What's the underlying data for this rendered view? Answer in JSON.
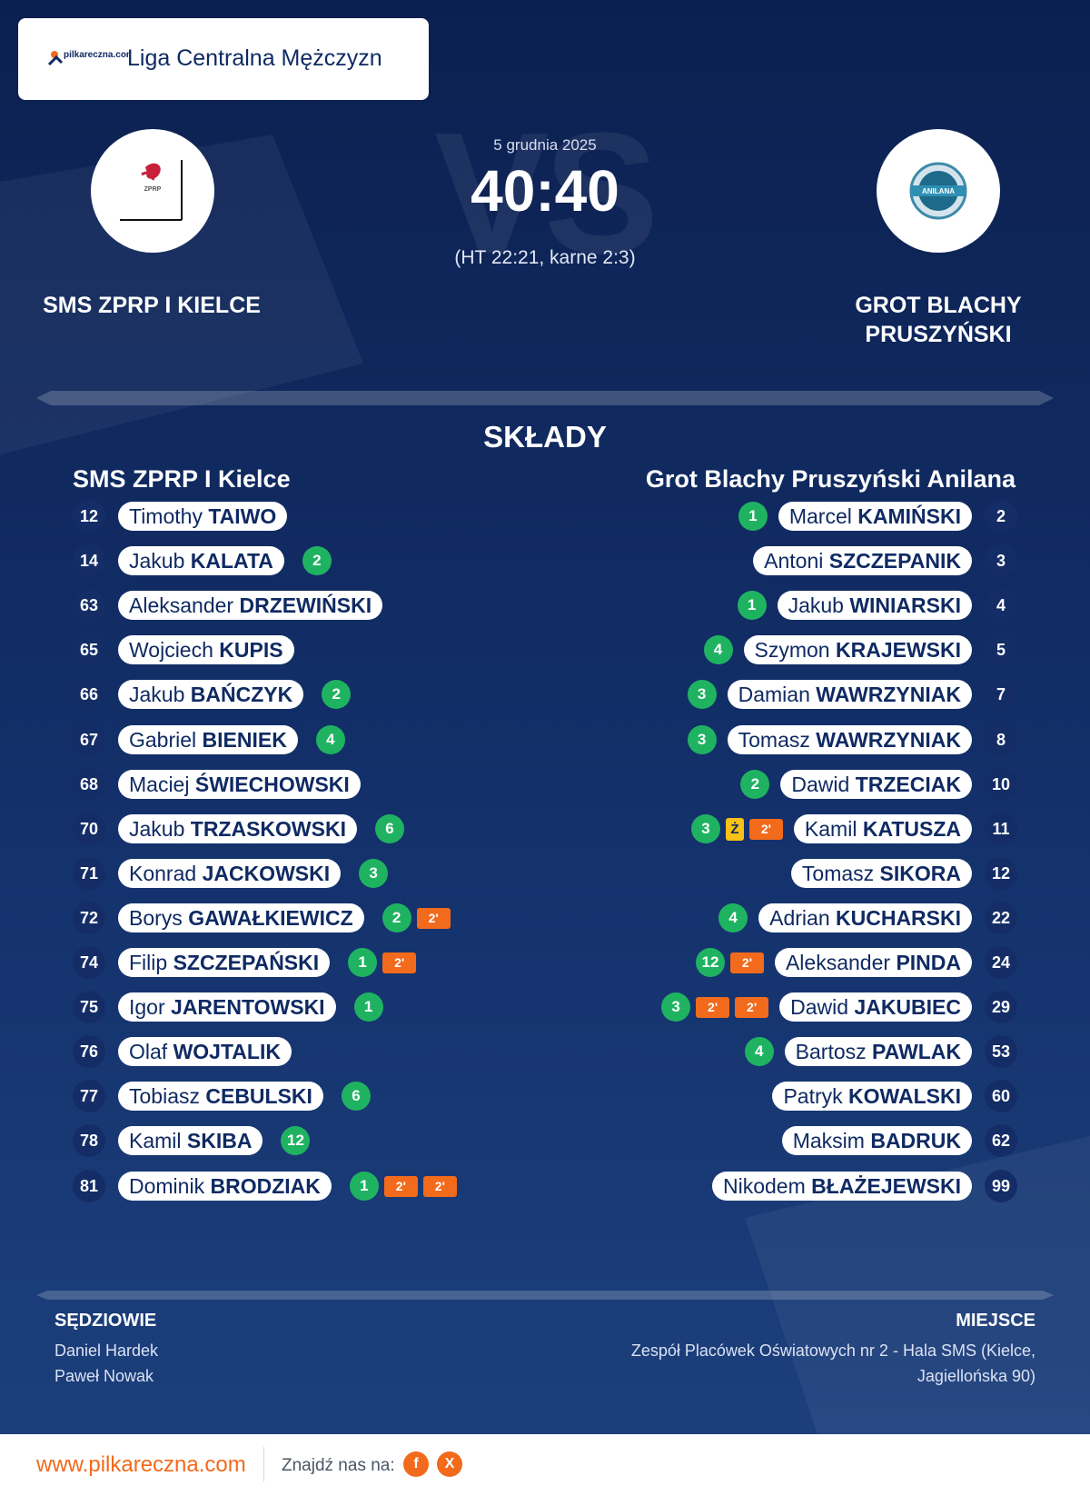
{
  "header": {
    "logo_text": "pilkareczna.com",
    "league": "Liga Centralna Mężczyzn"
  },
  "match": {
    "vs": "VS",
    "date": "5 grudnia 2025",
    "score": "40:40",
    "detail": "(HT 22:21, karne 2:3)",
    "home_name": "SMS ZPRP I KIELCE",
    "away_name_line1": "GROT BLACHY",
    "away_name_line2": "PRUSZYŃSKI",
    "home_logo_text": "ZPRP",
    "away_logo_text": "ANILANA"
  },
  "lineups": {
    "title": "SKŁADY",
    "home_title": "SMS ZPRP I Kielce",
    "away_title": "Grot Blachy Pruszyński Anilana",
    "home": [
      {
        "num": "12",
        "first": "Timothy",
        "last": "TAIWO",
        "events": []
      },
      {
        "num": "14",
        "first": "Jakub",
        "last": "KALATA",
        "events": [
          {
            "t": "goal",
            "v": "2"
          }
        ]
      },
      {
        "num": "63",
        "first": "Aleksander",
        "last": "DRZEWIŃSKI",
        "events": []
      },
      {
        "num": "65",
        "first": "Wojciech",
        "last": "KUPIS",
        "events": []
      },
      {
        "num": "66",
        "first": "Jakub",
        "last": "BAŃCZYK",
        "events": [
          {
            "t": "goal",
            "v": "2"
          }
        ]
      },
      {
        "num": "67",
        "first": "Gabriel",
        "last": "BIENIEK",
        "events": [
          {
            "t": "goal",
            "v": "4"
          }
        ]
      },
      {
        "num": "68",
        "first": "Maciej",
        "last": "ŚWIECHOWSKI",
        "events": []
      },
      {
        "num": "70",
        "first": "Jakub",
        "last": "TRZASKOWSKI",
        "events": [
          {
            "t": "goal",
            "v": "6"
          }
        ]
      },
      {
        "num": "71",
        "first": "Konrad",
        "last": "JACKOWSKI",
        "events": [
          {
            "t": "goal",
            "v": "3"
          }
        ]
      },
      {
        "num": "72",
        "first": "Borys",
        "last": "GAWAŁKIEWICZ",
        "events": [
          {
            "t": "goal",
            "v": "2"
          },
          {
            "t": "susp",
            "v": "2'"
          }
        ]
      },
      {
        "num": "74",
        "first": "Filip",
        "last": "SZCZEPAŃSKI",
        "events": [
          {
            "t": "goal",
            "v": "1"
          },
          {
            "t": "susp",
            "v": "2'"
          }
        ]
      },
      {
        "num": "75",
        "first": "Igor",
        "last": "JARENTOWSKI",
        "events": [
          {
            "t": "goal",
            "v": "1"
          }
        ]
      },
      {
        "num": "76",
        "first": "Olaf",
        "last": "WOJTALIK",
        "events": []
      },
      {
        "num": "77",
        "first": "Tobiasz",
        "last": "CEBULSKI",
        "events": [
          {
            "t": "goal",
            "v": "6"
          }
        ]
      },
      {
        "num": "78",
        "first": "Kamil",
        "last": "SKIBA",
        "events": [
          {
            "t": "goal",
            "v": "12"
          }
        ]
      },
      {
        "num": "81",
        "first": "Dominik",
        "last": "BRODZIAK",
        "events": [
          {
            "t": "goal",
            "v": "1"
          },
          {
            "t": "susp",
            "v": "2'"
          },
          {
            "t": "susp",
            "v": "2'"
          }
        ]
      }
    ],
    "away": [
      {
        "num": "2",
        "first": "Marcel",
        "last": "KAMIŃSKI",
        "events": [
          {
            "t": "goal",
            "v": "1"
          }
        ]
      },
      {
        "num": "3",
        "first": "Antoni",
        "last": "SZCZEPANIK",
        "events": []
      },
      {
        "num": "4",
        "first": "Jakub",
        "last": "WINIARSKI",
        "events": [
          {
            "t": "goal",
            "v": "1"
          }
        ]
      },
      {
        "num": "5",
        "first": "Szymon",
        "last": "KRAJEWSKI",
        "events": [
          {
            "t": "goal",
            "v": "4"
          }
        ]
      },
      {
        "num": "7",
        "first": "Damian",
        "last": "WAWRZYNIAK",
        "events": [
          {
            "t": "goal",
            "v": "3"
          }
        ]
      },
      {
        "num": "8",
        "first": "Tomasz",
        "last": "WAWRZYNIAK",
        "events": [
          {
            "t": "goal",
            "v": "3"
          }
        ]
      },
      {
        "num": "10",
        "first": "Dawid",
        "last": "TRZECIAK",
        "events": [
          {
            "t": "goal",
            "v": "2"
          }
        ]
      },
      {
        "num": "11",
        "first": "Kamil",
        "last": "KATUSZA",
        "events": [
          {
            "t": "susp",
            "v": "2'"
          },
          {
            "t": "yellow",
            "v": "Ż"
          },
          {
            "t": "goal",
            "v": "3"
          }
        ]
      },
      {
        "num": "12",
        "first": "Tomasz",
        "last": "SIKORA",
        "events": []
      },
      {
        "num": "22",
        "first": "Adrian",
        "last": "KUCHARSKI",
        "events": [
          {
            "t": "goal",
            "v": "4"
          }
        ]
      },
      {
        "num": "24",
        "first": "Aleksander",
        "last": "PINDA",
        "events": [
          {
            "t": "susp",
            "v": "2'"
          },
          {
            "t": "goal",
            "v": "12"
          }
        ]
      },
      {
        "num": "29",
        "first": "Dawid",
        "last": "JAKUBIEC",
        "events": [
          {
            "t": "susp",
            "v": "2'"
          },
          {
            "t": "susp",
            "v": "2'"
          },
          {
            "t": "goal",
            "v": "3"
          }
        ]
      },
      {
        "num": "53",
        "first": "Bartosz",
        "last": "PAWLAK",
        "events": [
          {
            "t": "goal",
            "v": "4"
          }
        ]
      },
      {
        "num": "60",
        "first": "Patryk",
        "last": "KOWALSKI",
        "events": []
      },
      {
        "num": "62",
        "first": "Maksim",
        "last": "BADRUK",
        "events": []
      },
      {
        "num": "99",
        "first": "Nikodem",
        "last": "BŁAŻEJEWSKI",
        "events": []
      }
    ]
  },
  "officials": {
    "title": "SĘDZIOWIE",
    "names": [
      "Daniel Hardek",
      "Paweł Nowak"
    ]
  },
  "venue": {
    "title": "MIEJSCE",
    "lines": [
      "Zespół Placówek Oświatowych nr 2 - Hala SMS (Kielce,",
      "Jagiellońska 90)"
    ]
  },
  "footer": {
    "url": "www.pilkareczna.com",
    "find_us": "Znajdź nas na:",
    "facebook_label": "f",
    "x_label": "X"
  },
  "colors": {
    "background": "#0e2556",
    "goal": "#1fb361",
    "suspension": "#f26a1b",
    "yellow_card": "#f9c116",
    "accent": "#f26a1b"
  }
}
